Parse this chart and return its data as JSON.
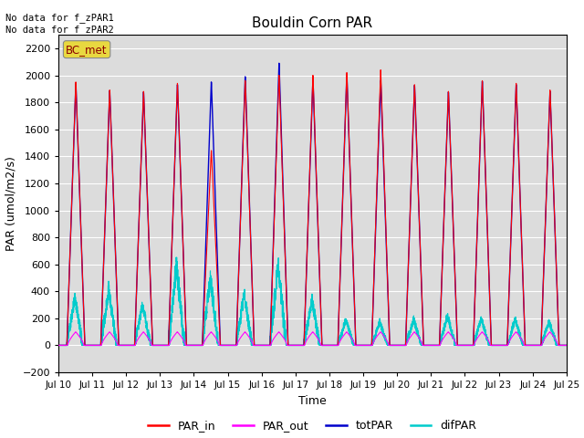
{
  "title": "Bouldin Corn PAR",
  "ylabel": "PAR (umol/m2/s)",
  "xlabel": "Time",
  "top_left_text": "No data for f_zPAR1\nNo data for f_zPAR2",
  "legend_label_text": "BC_met",
  "legend_entries": [
    "PAR_in",
    "PAR_out",
    "totPAR",
    "difPAR"
  ],
  "legend_colors": [
    "#ff0000",
    "#ff00ff",
    "#0000cc",
    "#00cccc"
  ],
  "colors": {
    "PAR_in": "#ff0000",
    "PAR_out": "#ff00ff",
    "totPAR": "#0000cc",
    "difPAR": "#00cccc"
  },
  "ylim": [
    -200,
    2300
  ],
  "yticks": [
    -200,
    0,
    200,
    400,
    600,
    800,
    1000,
    1200,
    1400,
    1600,
    1800,
    2000,
    2200
  ],
  "bg_color": "#dcdcdc",
  "n_days": 15,
  "start_day": 10,
  "pts_per_day": 288
}
